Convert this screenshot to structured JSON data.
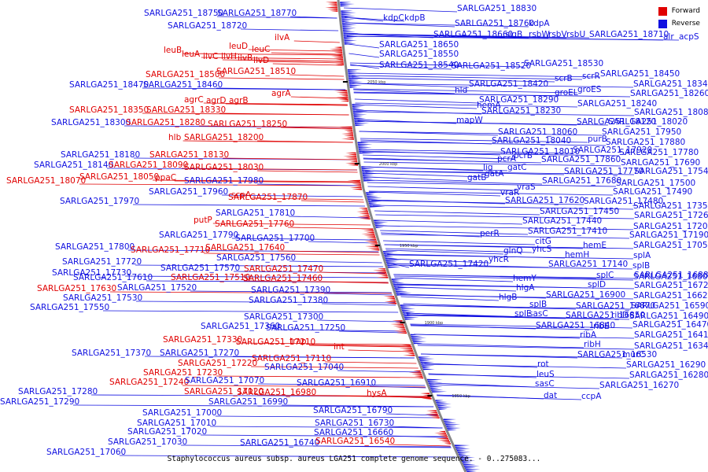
{
  "legend": {
    "forward": {
      "label": "Forward",
      "color": "#e00000"
    },
    "reverse": {
      "label": "Reverse",
      "color": "#1010e0"
    }
  },
  "caption": "Staphylococcus aureus subsp. aureus LGA251 complete genome sequence. - 0..275083...",
  "scale_ticks": [
    "2050 kbp",
    "2000 kbp",
    "1950 kbp",
    "1900 kbp",
    "1850 kbp"
  ],
  "colors": {
    "forward": "#e00000",
    "reverse": "#1010e0",
    "axis": "#888888"
  },
  "labels": [
    [
      "SARLGA251_18750",
      "r"
    ],
    [
      "SARLGA251_18770",
      "r"
    ],
    [
      "SARLGA251_18720",
      "r"
    ],
    [
      "ilvA",
      "f"
    ],
    [
      "leuB",
      "f"
    ],
    [
      "leuD",
      "f"
    ],
    [
      "leuC",
      "f"
    ],
    [
      "leuA",
      "f"
    ],
    [
      "ilvC",
      "f"
    ],
    [
      "ilvH",
      "f"
    ],
    [
      "ilvB",
      "f"
    ],
    [
      "ilvD",
      "f"
    ],
    [
      "SARLGA251_18500",
      "f"
    ],
    [
      "SARLGA251_18510",
      "f"
    ],
    [
      "SARLGA251_18470",
      "r"
    ],
    [
      "SARLGA251_18460",
      "r"
    ],
    [
      "agrA",
      "f"
    ],
    [
      "agrC",
      "f"
    ],
    [
      "agrD",
      "f"
    ],
    [
      "agrB",
      "f"
    ],
    [
      "SARLGA251_18350",
      "f"
    ],
    [
      "SARLGA251_18330",
      "f"
    ],
    [
      "SARLGA251_18300",
      "r"
    ],
    [
      "SARLGA251_18280",
      "f"
    ],
    [
      "SARLGA251_18250",
      "f"
    ],
    [
      "hlb",
      "f"
    ],
    [
      "SARLGA251_18200",
      "f"
    ],
    [
      "SARLGA251_18180",
      "r"
    ],
    [
      "SARLGA251_18130",
      "f"
    ],
    [
      "SARLGA251_18140",
      "r"
    ],
    [
      "SARLGA251_18090",
      "f"
    ],
    [
      "SARLGA251_18030",
      "f"
    ],
    [
      "SARLGA251_18070",
      "f"
    ],
    [
      "SARLGA251_18050",
      "f"
    ],
    [
      "ppaC",
      "f"
    ],
    [
      "SARLGA251_17980",
      "r"
    ],
    [
      "SARLGA251_17960",
      "r"
    ],
    [
      "scpA",
      "f"
    ],
    [
      "SARLGA251_17970",
      "r"
    ],
    [
      "SARLGA251_17870",
      "f"
    ],
    [
      "SARLGA251_17810",
      "r"
    ],
    [
      "putP",
      "f"
    ],
    [
      "SARLGA251_17760",
      "f"
    ],
    [
      "SARLGA251_17790",
      "r"
    ],
    [
      "SARLGA251_17700",
      "r"
    ],
    [
      "SARLGA251_17800",
      "r"
    ],
    [
      "SARLGA251_17710",
      "f"
    ],
    [
      "SARLGA251_17640",
      "f"
    ],
    [
      "SARLGA251_17720",
      "r"
    ],
    [
      "SARLGA251_17560",
      "r"
    ],
    [
      "SARLGA251_17730",
      "r"
    ],
    [
      "SARLGA251_17570",
      "r"
    ],
    [
      "SARLGA251_17470",
      "f"
    ],
    [
      "SARLGA251_17610",
      "r"
    ],
    [
      "SARLGA251_17510",
      "f"
    ],
    [
      "SARLGA251_17460",
      "f"
    ],
    [
      "SARLGA251_17630",
      "f"
    ],
    [
      "SARLGA251_17520",
      "r"
    ],
    [
      "SARLGA251_17530",
      "r"
    ],
    [
      "SARLGA251_17390",
      "r"
    ],
    [
      "SARLGA251_17550",
      "r"
    ],
    [
      "SARLGA251_17380",
      "r"
    ],
    [
      "SARLGA251_17300",
      "r"
    ],
    [
      "SARLGA251_17360",
      "r"
    ],
    [
      "SARLGA251_17250",
      "r"
    ],
    [
      "SARLGA251_17330",
      "f"
    ],
    [
      "SARLGA251_17210",
      "f"
    ],
    [
      "trap",
      "f"
    ],
    [
      "SARLGA251_17370",
      "r"
    ],
    [
      "SARLGA251_17270",
      "r"
    ],
    [
      "int",
      "f"
    ],
    [
      "SARLGA251_17220",
      "f"
    ],
    [
      "SARLGA251_17110",
      "f"
    ],
    [
      "SARLGA251_17230",
      "f"
    ],
    [
      "SARLGA251_17040",
      "r"
    ],
    [
      "SARLGA251_17240",
      "f"
    ],
    [
      "SARLGA251_17070",
      "r"
    ],
    [
      "SARLGA251_16910",
      "r"
    ],
    [
      "SARLGA251_17280",
      "r"
    ],
    [
      "SARLGA251_17120",
      "f"
    ],
    [
      "SARLGA251_16980",
      "f"
    ],
    [
      "hysA",
      "f"
    ],
    [
      "SARLGA251_17290",
      "r"
    ],
    [
      "SARLGA251_16990",
      "r"
    ],
    [
      "SARLGA251_17000",
      "r"
    ],
    [
      "SARLGA251_16790",
      "r"
    ],
    [
      "SARLGA251_17010",
      "r"
    ],
    [
      "SARLGA251_16730",
      "r"
    ],
    [
      "SARLGA251_17020",
      "r"
    ],
    [
      "SARLGA251_16660",
      "r"
    ],
    [
      "SARLGA251_17030",
      "r"
    ],
    [
      "SARLGA251_16740",
      "r"
    ],
    [
      "SARLGA251_16540",
      "f"
    ],
    [
      "SARLGA251_17060",
      "r"
    ],
    [
      "SARLGA251_18830",
      "r"
    ],
    [
      "kdpC",
      "r"
    ],
    [
      "kdpB",
      "r"
    ],
    [
      "SARLGA251_18760",
      "r"
    ],
    [
      "kdpA",
      "r"
    ],
    [
      "SARLGA251_18660",
      "r"
    ],
    [
      "sigB",
      "r"
    ],
    [
      "rsbW",
      "r"
    ],
    [
      "rsbV",
      "r"
    ],
    [
      "rsbU",
      "r"
    ],
    [
      "SARLGA251_18710",
      "r"
    ],
    [
      "alr",
      "r"
    ],
    [
      "acpS",
      "r"
    ],
    [
      "SARLGA251_18650",
      "r"
    ],
    [
      "SARLGA251_18550",
      "r"
    ],
    [
      "SARLGA251_18540",
      "r"
    ],
    [
      "SARLGA251_18520",
      "r"
    ],
    [
      "SARLGA251_18530",
      "r"
    ],
    [
      "scrB",
      "r"
    ],
    [
      "scrR",
      "r"
    ],
    [
      "SARLGA251_18450",
      "r"
    ],
    [
      "SARLGA251_18420",
      "r"
    ],
    [
      "SARLGA251_18340",
      "r"
    ],
    [
      "hld",
      "r"
    ],
    [
      "groEL",
      "r"
    ],
    [
      "groES",
      "r"
    ],
    [
      "SARLGA251_18260",
      "r"
    ],
    [
      "SARLGA251_18290",
      "r"
    ],
    [
      "SARLGA251_18240",
      "r"
    ],
    [
      "hemA",
      "r"
    ],
    [
      "SARLGA251_18230",
      "r"
    ],
    [
      "SARLGA251_18080",
      "r"
    ],
    [
      "mapW",
      "r"
    ],
    [
      "SARLGA251_18120",
      "r"
    ],
    [
      "SARLGA251_18020",
      "r"
    ],
    [
      "SARLGA251_18060",
      "r"
    ],
    [
      "SARLGA251_17950",
      "r"
    ],
    [
      "SARLGA251_18040",
      "r"
    ],
    [
      "purB",
      "r"
    ],
    [
      "SARLGA251_17880",
      "r"
    ],
    [
      "SARLGA251_18010",
      "r"
    ],
    [
      "SARLGA251_17920",
      "r"
    ],
    [
      "SARLGA251_17780",
      "r"
    ],
    [
      "pcrA",
      "r"
    ],
    [
      "pcrB",
      "r"
    ],
    [
      "SARLGA251_17860",
      "r"
    ],
    [
      "SARLGA251_17690",
      "r"
    ],
    [
      "lig",
      "r"
    ],
    [
      "gatC",
      "r"
    ],
    [
      "SARLGA251_17770",
      "r"
    ],
    [
      "SARLGA251_17540",
      "r"
    ],
    [
      "gatB",
      "r"
    ],
    [
      "gatA",
      "r"
    ],
    [
      "SARLGA251_17680",
      "r"
    ],
    [
      "SARLGA251_17500",
      "r"
    ],
    [
      "vraS",
      "r"
    ],
    [
      "vraR",
      "r"
    ],
    [
      "SARLGA251_17490",
      "r"
    ],
    [
      "SARLGA251_17620",
      "r"
    ],
    [
      "SARLGA251_17480",
      "r"
    ],
    [
      "SARLGA251_17350",
      "r"
    ],
    [
      "SARLGA251_17450",
      "r"
    ],
    [
      "SARLGA251_17260",
      "r"
    ],
    [
      "SARLGA251_17440",
      "r"
    ],
    [
      "SARLGA251_17200",
      "r"
    ],
    [
      "perR",
      "r"
    ],
    [
      "SARLGA251_17410",
      "r"
    ],
    [
      "SARLGA251_17190",
      "r"
    ],
    [
      "citG",
      "r"
    ],
    [
      "hemE",
      "r"
    ],
    [
      "SARLGA251_17050",
      "r"
    ],
    [
      "glnQ",
      "r"
    ],
    [
      "yhcS",
      "r"
    ],
    [
      "hemH",
      "r"
    ],
    [
      "splA",
      "r"
    ],
    [
      "yhcR",
      "r"
    ],
    [
      "SARLGA251_17420",
      "r"
    ],
    [
      "SARLGA251_17140",
      "r"
    ],
    [
      "splB",
      "r"
    ],
    [
      "SARLGA251_16880",
      "r"
    ],
    [
      "splC",
      "r"
    ],
    [
      "SARLGA251_16800",
      "r"
    ],
    [
      "hemY",
      "r"
    ],
    [
      "splD",
      "r"
    ],
    [
      "SARLGA251_16720",
      "r"
    ],
    [
      "hlgA",
      "r"
    ],
    [
      "SARLGA251_16900",
      "r"
    ],
    [
      "SARLGA251_16620",
      "r"
    ],
    [
      "hlgB",
      "r"
    ],
    [
      "splB",
      "r"
    ],
    [
      "SARLGA251_16870",
      "r"
    ],
    [
      "SARLGA251_16590",
      "r"
    ],
    [
      "splE",
      "r"
    ],
    [
      "sasC",
      "r"
    ],
    [
      "SARLGA251_16850",
      "r"
    ],
    [
      "ribD",
      "r"
    ],
    [
      "SARLGA251_16490",
      "r"
    ],
    [
      "SARLGA251_16840",
      "r"
    ],
    [
      "ribE",
      "r"
    ],
    [
      "SARLGA251_16470",
      "r"
    ],
    [
      "ribA",
      "r"
    ],
    [
      "SARLGA251_16410",
      "r"
    ],
    [
      "ribH",
      "r"
    ],
    [
      "SARLGA251_16340",
      "r"
    ],
    [
      "SARLGA251_16530",
      "r"
    ],
    [
      "murC",
      "r"
    ],
    [
      "rot",
      "r"
    ],
    [
      "SARLGA251_16290",
      "r"
    ],
    [
      "leuS",
      "r"
    ],
    [
      "SARLGA251_16280",
      "r"
    ],
    [
      "sasC",
      "r"
    ],
    [
      "SARLGA251_16270",
      "r"
    ],
    [
      "dat",
      "r"
    ],
    [
      "ccpA",
      "r"
    ]
  ]
}
